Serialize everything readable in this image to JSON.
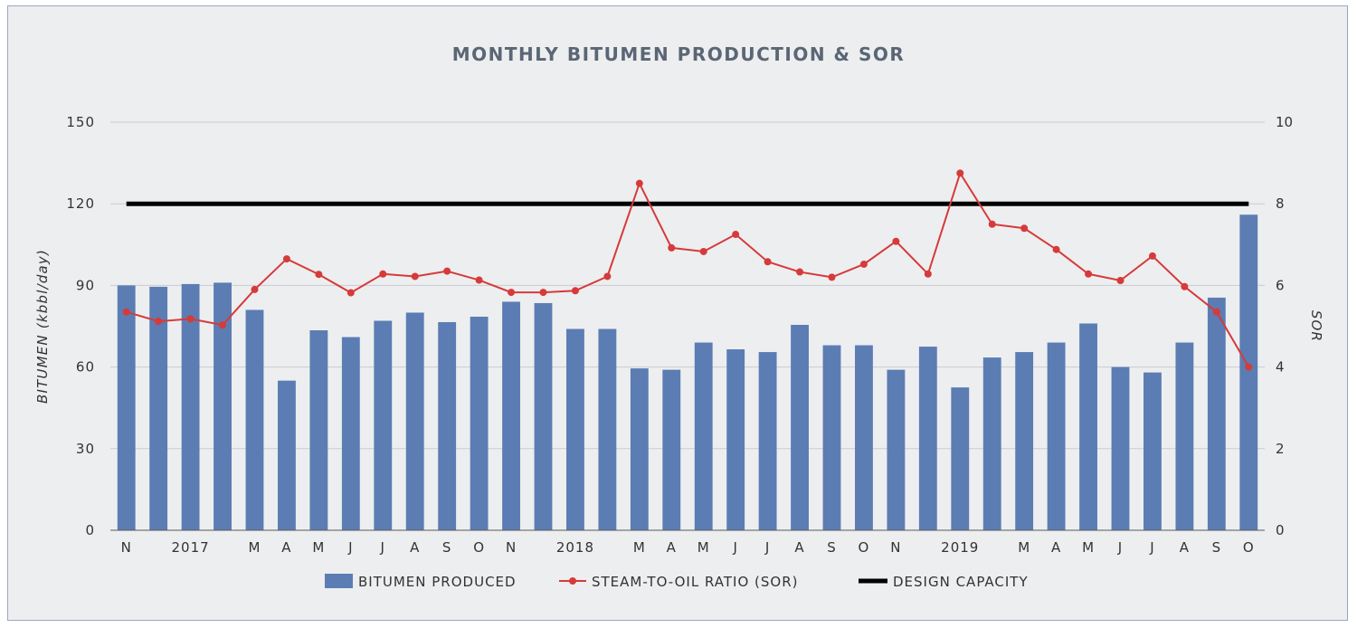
{
  "chart_data": {
    "type": "bar",
    "title": "MONTHLY BITUMEN PRODUCTION & SOR",
    "ylabel": "BITUMEN (kbbl/day)",
    "y2label": "SOR",
    "ylim": [
      0,
      150
    ],
    "y2lim": [
      0,
      10
    ],
    "yticks": [
      "0",
      "30",
      "60",
      "90",
      "120",
      "150"
    ],
    "y2ticks": [
      "0",
      "2",
      "4",
      "6",
      "8",
      "10"
    ],
    "grid": true,
    "legend_position": "bottom",
    "categories": [
      "N",
      "",
      "2017",
      "",
      "M",
      "A",
      "M",
      "J",
      "J",
      "A",
      "S",
      "O",
      "N",
      "",
      "2018",
      "",
      "M",
      "A",
      "M",
      "J",
      "J",
      "A",
      "S",
      "O",
      "N",
      "",
      "2019",
      "",
      "M",
      "A",
      "M",
      "J",
      "J",
      "A",
      "S",
      "O"
    ],
    "series": [
      {
        "name": "BITUMEN PRODUCED",
        "type": "bar",
        "axis": "left",
        "color": "#5b7db3",
        "values": [
          90,
          89.5,
          90.5,
          91,
          81,
          55,
          73.5,
          71,
          77,
          80,
          76.5,
          78.5,
          84,
          83.5,
          74,
          74,
          59.5,
          59,
          69,
          66.5,
          65.5,
          75.5,
          68,
          68,
          59,
          67.5,
          52.5,
          63.5,
          65.5,
          69,
          76,
          60,
          58,
          69,
          85.5,
          116
        ]
      },
      {
        "name": "STEAM-TO-OIL RATIO (SOR)",
        "type": "line",
        "axis": "right",
        "color": "#d63a3a",
        "values": [
          5.35,
          5.12,
          5.18,
          5.03,
          5.9,
          6.65,
          6.27,
          5.82,
          6.28,
          6.22,
          6.35,
          6.13,
          5.83,
          5.83,
          5.87,
          6.22,
          8.5,
          6.92,
          6.83,
          7.25,
          6.58,
          6.33,
          6.2,
          6.52,
          7.08,
          6.28,
          8.75,
          7.5,
          7.4,
          6.88,
          6.28,
          6.12,
          6.72,
          5.97,
          5.35,
          4.0
        ]
      },
      {
        "name": "DESIGN CAPACITY",
        "type": "line",
        "axis": "left",
        "color": "#000000",
        "values": [
          120,
          120,
          120,
          120,
          120,
          120,
          120,
          120,
          120,
          120,
          120,
          120,
          120,
          120,
          120,
          120,
          120,
          120,
          120,
          120,
          120,
          120,
          120,
          120,
          120,
          120,
          120,
          120,
          120,
          120,
          120,
          120,
          120,
          120,
          120,
          120
        ]
      }
    ]
  }
}
